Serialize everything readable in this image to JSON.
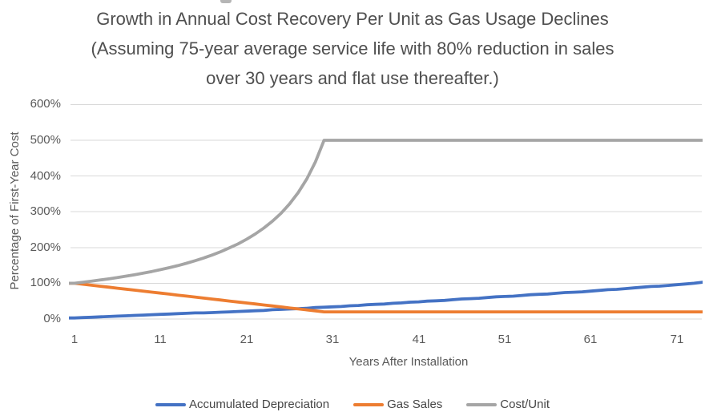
{
  "colors": {
    "background": "#ffffff",
    "grid": "#d9d9d9",
    "axis_text": "#595959",
    "title_text": "#4f4f4f",
    "series_blue": "#4472C4",
    "series_orange": "#ED7D31",
    "series_gray": "#A5A5A5"
  },
  "chart_data": {
    "type": "line",
    "title": "Growth in Annual Cost Recovery Per Unit as Gas Usage Declines (Assuming 75-year average service life with 80% reduction in sales over 30 years and flat use thereafter.)",
    "title_lines": [
      "Growth in Annual Cost Recovery Per Unit as Gas Usage Declines",
      "(Assuming 75-year average service life with 80% reduction in sales",
      "over 30 years and flat use thereafter.)"
    ],
    "xlabel": "Years After Installation",
    "ylabel": "Percentage of First-Year Cost",
    "xlim": [
      1,
      75
    ],
    "ylim": [
      0,
      600
    ],
    "grid": true,
    "legend_position": "bottom",
    "xticks": [
      1,
      11,
      21,
      31,
      41,
      51,
      61,
      71
    ],
    "ytick_values": [
      0,
      100,
      200,
      300,
      400,
      500,
      600
    ],
    "ytick_labels": [
      "0%",
      "100%",
      "200%",
      "300%",
      "400%",
      "500%",
      "600%"
    ],
    "x_years": [
      1,
      2,
      3,
      4,
      5,
      6,
      7,
      8,
      9,
      10,
      11,
      12,
      13,
      14,
      15,
      16,
      17,
      18,
      19,
      20,
      21,
      22,
      23,
      24,
      25,
      26,
      27,
      28,
      29,
      30,
      31,
      32,
      33,
      34,
      35,
      36,
      37,
      38,
      39,
      40,
      41,
      42,
      43,
      44,
      45,
      46,
      47,
      48,
      49,
      50,
      51,
      52,
      53,
      54,
      55,
      56,
      57,
      58,
      59,
      60,
      61,
      62,
      63,
      64,
      65,
      66,
      67,
      68,
      69,
      70,
      71,
      72,
      73,
      74,
      75
    ],
    "series": [
      {
        "name": "Accumulated Depreciation",
        "color": "#4472C4",
        "values": [
          3,
          4,
          5,
          6,
          7,
          8,
          9,
          10,
          11,
          12,
          13,
          14,
          15,
          16,
          17,
          17,
          18,
          19,
          20,
          21,
          22,
          23,
          24,
          26,
          27,
          28,
          29,
          30,
          32,
          33,
          34,
          35,
          37,
          38,
          40,
          41,
          42,
          44,
          45,
          47,
          48,
          50,
          51,
          52,
          54,
          56,
          57,
          58,
          60,
          62,
          63,
          64,
          66,
          68,
          69,
          70,
          72,
          74,
          75,
          76,
          78,
          80,
          82,
          83,
          85,
          87,
          89,
          91,
          92,
          94,
          96,
          98,
          100,
          103,
          105
        ]
      },
      {
        "name": "Gas Sales",
        "color": "#ED7D31",
        "values": [
          100,
          97.2,
          94.5,
          91.7,
          89,
          86.2,
          83.4,
          80.7,
          77.9,
          75.2,
          72.4,
          69.7,
          66.9,
          64.1,
          61.4,
          58.6,
          55.9,
          53.1,
          50.3,
          47.6,
          44.8,
          42.1,
          39.3,
          36.6,
          33.8,
          31,
          28.3,
          25.5,
          22.8,
          20,
          20,
          20,
          20,
          20,
          20,
          20,
          20,
          20,
          20,
          20,
          20,
          20,
          20,
          20,
          20,
          20,
          20,
          20,
          20,
          20,
          20,
          20,
          20,
          20,
          20,
          20,
          20,
          20,
          20,
          20,
          20,
          20,
          20,
          20,
          20,
          20,
          20,
          20,
          20,
          20,
          20,
          20,
          20,
          20,
          20
        ]
      },
      {
        "name": "Cost/Unit",
        "color": "#A5A5A5",
        "values": [
          100,
          102.9,
          105.9,
          109.1,
          112.4,
          116,
          119.9,
          124,
          128.4,
          133,
          138.1,
          143.5,
          149.4,
          155.9,
          162.9,
          170.6,
          179,
          188.4,
          198.9,
          210.2,
          223.1,
          237.7,
          254.4,
          273.5,
          295.7,
          322.2,
          353.5,
          391.9,
          439.4,
          500,
          500,
          500,
          500,
          500,
          500,
          500,
          500,
          500,
          500,
          500,
          500,
          500,
          500,
          500,
          500,
          500,
          500,
          500,
          500,
          500,
          500,
          500,
          500,
          500,
          500,
          500,
          500,
          500,
          500,
          500,
          500,
          500,
          500,
          500,
          500,
          500,
          500,
          500,
          500,
          500,
          500,
          500,
          500,
          500,
          500
        ]
      }
    ]
  }
}
